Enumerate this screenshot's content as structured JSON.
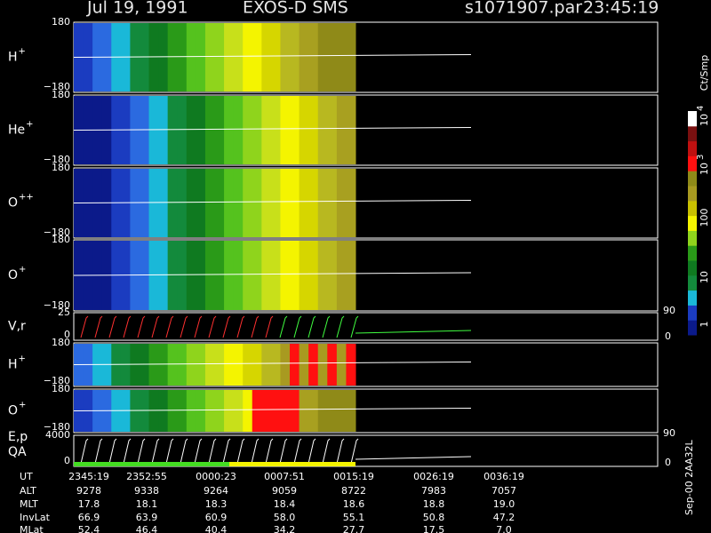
{
  "header": {
    "date": "Jul 19, 1991",
    "instrument": "EXOS-D SMS",
    "file": "s1071907.par",
    "time": "23:45:19"
  },
  "panels": [
    {
      "label": "H",
      "sup": "+",
      "top": "180",
      "bottom": "−180"
    },
    {
      "label": "He",
      "sup": "+",
      "top": "180",
      "bottom": "−180"
    },
    {
      "label": "O",
      "sup": "++",
      "top": "180",
      "bottom": "−180"
    },
    {
      "label": "O",
      "sup": "+",
      "top": "180",
      "bottom": "−180"
    },
    {
      "label": "V,r",
      "top": "25",
      "bottom": "0",
      "right_top": "90",
      "right_bottom": "0"
    },
    {
      "label": "H",
      "sup": "+",
      "top": "180",
      "bottom": "−180"
    },
    {
      "label": "O",
      "sup": "+",
      "top": "180",
      "bottom": "−180"
    },
    {
      "label": "E,p",
      "label2": "QA",
      "top": "4000",
      "bottom": "0",
      "right_top": "90",
      "right_bottom": "0"
    }
  ],
  "colorbar": {
    "unit": "Ct/Smp",
    "ticks": [
      {
        "base": "1"
      },
      {
        "base": "10"
      },
      {
        "base": "100"
      },
      {
        "base": "10",
        "exp": "3"
      },
      {
        "base": "10",
        "exp": "4"
      }
    ]
  },
  "footer": {
    "rows": [
      [
        "UT",
        "2345:19",
        "2352:55",
        "0000:23",
        "0007:51",
        "0015:19",
        "0026:19",
        "0036:19"
      ],
      [
        "ALT",
        "9278",
        "9338",
        "9264",
        "9059",
        "8722",
        "7983",
        "7057"
      ],
      [
        "MLT",
        "17.8",
        "18.1",
        "18.3",
        "18.4",
        "18.6",
        "18.8",
        "19.0"
      ],
      [
        "InvLat",
        "66.9",
        "63.9",
        "60.9",
        "58.0",
        "55.1",
        "50.8",
        "47.2"
      ],
      [
        "MLat",
        "52.4",
        "46.4",
        "40.4",
        "34.2",
        "27.7",
        "17.5",
        "7.0"
      ]
    ]
  },
  "stamp": "Sep-00 2AA32L"
}
